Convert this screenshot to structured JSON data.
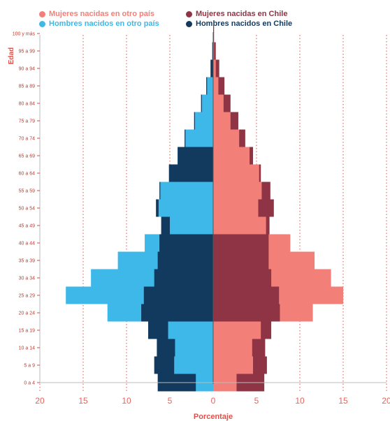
{
  "legend": [
    {
      "label": "Mujeres nacidas en otro país",
      "color": "#f28079"
    },
    {
      "label": "Mujeres nacidas en Chile",
      "color": "#8e3444"
    },
    {
      "label": "Hombres nacidos en otro país",
      "color": "#3db8e8"
    },
    {
      "label": "Hombres nacidos en Chile",
      "color": "#123a5e"
    }
  ],
  "chart_data": {
    "type": "bar",
    "orientation": "horizontal-population-pyramid",
    "ylabel": "Edad",
    "xlabel": "Porcentaje",
    "xlim": [
      -20,
      20
    ],
    "xticks": [
      -20,
      -15,
      -10,
      -5,
      0,
      5,
      10,
      15,
      20
    ],
    "xtick_labels": [
      "20",
      "15",
      "10",
      "5",
      "0",
      "5",
      "10",
      "15",
      "20"
    ],
    "grid": "vertical dotted",
    "categories": [
      "0 a 4",
      "5 a 9",
      "10 a 14",
      "15 a 19",
      "20 a 24",
      "25 a 29",
      "30 a 34",
      "35 a 39",
      "40 a 44",
      "45 a 49",
      "50 a 54",
      "55 a 59",
      "60 a 64",
      "65 a 69",
      "70 a 74",
      "75 a 79",
      "80 a 84",
      "85 a 89",
      "90 a 94",
      "95 a 99",
      "100 y más"
    ],
    "series": [
      {
        "name": "Hombres nacidos en otro país",
        "color": "#3db8e8",
        "side": "left",
        "values": [
          2.0,
          4.5,
          4.4,
          5.2,
          12.2,
          17.0,
          14.1,
          11.0,
          7.9,
          5.0,
          6.3,
          6.1,
          5.1,
          4.1,
          3.2,
          2.1,
          1.3,
          0.7,
          0.3,
          0.1,
          0.0
        ]
      },
      {
        "name": "Hombres nacidos en Chile",
        "color": "#123a5e",
        "side": "left",
        "values": [
          6.4,
          6.8,
          6.5,
          7.5,
          8.3,
          8.0,
          6.8,
          6.4,
          6.2,
          6.0,
          6.6,
          6.2,
          5.1,
          4.1,
          3.3,
          2.2,
          1.4,
          0.8,
          0.3,
          0.1,
          0.0
        ]
      },
      {
        "name": "Mujeres nacidas en otro país",
        "color": "#f28079",
        "side": "right",
        "values": [
          2.7,
          4.6,
          4.5,
          5.5,
          11.5,
          15.0,
          13.6,
          11.7,
          8.9,
          6.1,
          5.2,
          5.6,
          5.3,
          4.2,
          3.0,
          2.0,
          1.2,
          0.6,
          0.3,
          0.1,
          0.0
        ]
      },
      {
        "name": "Mujeres nacidas en Chile",
        "color": "#8e3444",
        "side": "right",
        "values": [
          5.9,
          6.2,
          6.0,
          6.7,
          7.7,
          7.6,
          6.7,
          6.4,
          6.4,
          6.5,
          7.0,
          6.6,
          5.5,
          4.6,
          3.7,
          2.9,
          2.0,
          1.3,
          0.7,
          0.3,
          0.1
        ]
      }
    ]
  }
}
